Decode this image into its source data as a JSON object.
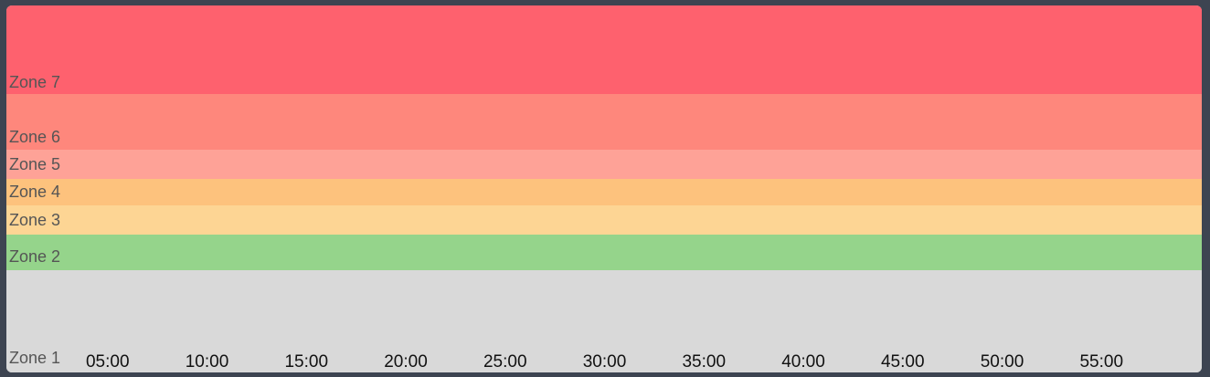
{
  "chart_data": {
    "type": "line",
    "title": "",
    "xlabel": "",
    "ylabel": "",
    "xlim_minutes": [
      0,
      60
    ],
    "zones": [
      {
        "label": "Zone 1",
        "color": "#d9d9d9"
      },
      {
        "label": "Zone 2",
        "color": "#95d48b"
      },
      {
        "label": "Zone 3",
        "color": "#fdd594"
      },
      {
        "label": "Zone 4",
        "color": "#fdc27d"
      },
      {
        "label": "Zone 5",
        "color": "#fea297"
      },
      {
        "label": "Zone 6",
        "color": "#fe877c"
      },
      {
        "label": "Zone 7",
        "color": "#fe616e"
      }
    ],
    "x_ticks": [
      "05:00",
      "10:00",
      "15:00",
      "20:00",
      "25:00",
      "30:00",
      "35:00",
      "40:00",
      "45:00",
      "50:00",
      "55:00"
    ],
    "x_tick_minutes": [
      5,
      10,
      15,
      20,
      25,
      30,
      35,
      40,
      45,
      50,
      55
    ],
    "grid": false,
    "legend": "none",
    "series": []
  }
}
